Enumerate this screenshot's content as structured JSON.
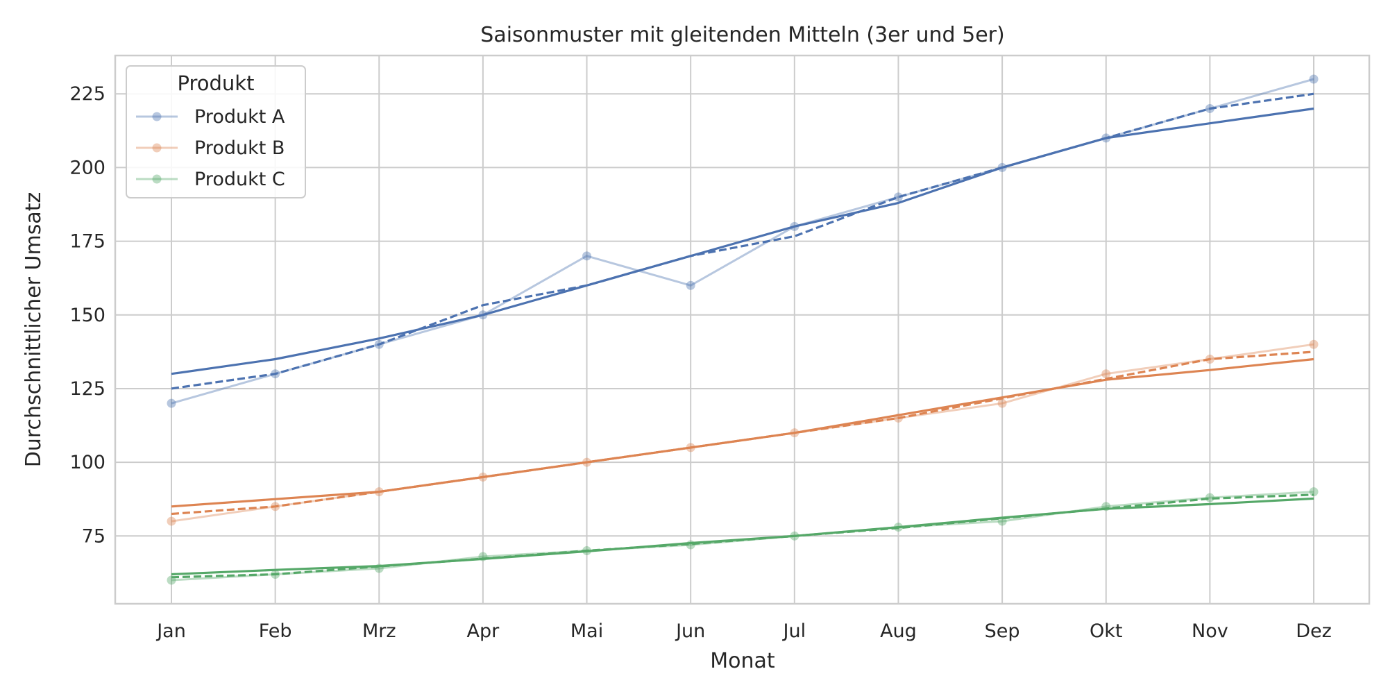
{
  "chart_data": {
    "type": "line",
    "title": "Saisonmuster mit gleitenden Mitteln (3er und 5er)",
    "xlabel": "Monat",
    "ylabel": "Durchschnittlicher Umsatz",
    "categories": [
      "Jan",
      "Feb",
      "Mrz",
      "Apr",
      "Mai",
      "Jun",
      "Jul",
      "Aug",
      "Sep",
      "Okt",
      "Nov",
      "Dez"
    ],
    "ylim": [
      52,
      238
    ],
    "yticks": [
      75,
      100,
      125,
      150,
      175,
      200,
      225
    ],
    "grid": true,
    "legend": {
      "title": "Produkt",
      "position": "top-left",
      "entries": [
        "Produkt A",
        "Produkt B",
        "Produkt C"
      ]
    },
    "series": [
      {
        "name": "Produkt A",
        "color": "#4c72b0",
        "values": [
          120,
          130,
          140,
          150,
          170,
          160,
          180,
          190,
          200,
          210,
          220,
          230
        ],
        "ma3": [
          125,
          130,
          140,
          153.3,
          160,
          170,
          176.7,
          190,
          200,
          210,
          220,
          225
        ],
        "ma5": [
          130,
          135,
          142,
          150,
          160,
          170,
          180,
          188,
          200,
          210,
          215,
          220
        ]
      },
      {
        "name": "Produkt B",
        "color": "#dd8452",
        "values": [
          80,
          85,
          90,
          95,
          100,
          105,
          110,
          115,
          120,
          130,
          135,
          140
        ],
        "ma3": [
          82.5,
          85,
          90,
          95,
          100,
          105,
          110,
          115,
          121.7,
          128.3,
          135,
          137.5
        ],
        "ma5": [
          85,
          87.5,
          90,
          95,
          100,
          105,
          110,
          116,
          122,
          128,
          131.3,
          135
        ]
      },
      {
        "name": "Produkt C",
        "color": "#55a868",
        "values": [
          60,
          62,
          64,
          68,
          70,
          72,
          75,
          78,
          80,
          85,
          88,
          90
        ],
        "ma3": [
          61,
          62,
          64.7,
          67.3,
          70,
          72.3,
          75,
          77.7,
          81,
          84.3,
          87.7,
          89
        ],
        "ma5": [
          62,
          63.5,
          64.8,
          67.2,
          69.8,
          72.6,
          75,
          78,
          81.2,
          84.2,
          85.8,
          87.7
        ]
      }
    ]
  }
}
